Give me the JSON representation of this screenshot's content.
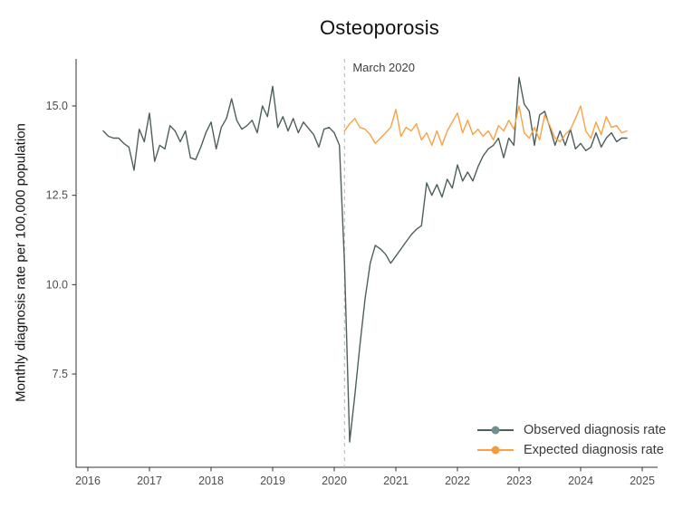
{
  "title": "Osteoporosis",
  "y_axis_label": "Monthly diagnosis rate per 100,000 population",
  "annotation": {
    "label": "March 2020"
  },
  "legend": {
    "observed": {
      "label": "Observed diagnosis rate"
    },
    "expected": {
      "label": "Expected diagnosis rate"
    }
  },
  "colors": {
    "observed_line": "#4d5f5d",
    "observed_dot": "#6c9190",
    "expected_line": "#f9a242",
    "expected_dot": "#f79a3e",
    "axis": "#333333",
    "tick_label": "#4d4d4d",
    "reference_line": "#bdbdbd",
    "annotation_text": "#3f3f3f"
  },
  "chart_data": {
    "type": "line",
    "title": "Osteoporosis",
    "xlabel": "",
    "ylabel": "Monthly diagnosis rate per 100,000 population",
    "x_ticks": [
      2016,
      2017,
      2018,
      2019,
      2020,
      2021,
      2022,
      2023,
      2024,
      2025
    ],
    "y_ticks": [
      7.5,
      10.0,
      12.5,
      15.0
    ],
    "y_tick_labels": [
      "7.5",
      "10.0",
      "12.5",
      "15.0"
    ],
    "xlim_years": [
      2015.81,
      2025.25
    ],
    "ylim": [
      4.89,
      16.32
    ],
    "grid": false,
    "legend_position": "bottom-right-inside",
    "annotation_line": {
      "label": "March 2020",
      "date": "2020-03",
      "style": "dashed"
    },
    "series": [
      {
        "name": "Observed diagnosis rate",
        "color": "#4d5f5d",
        "start": "2016-04",
        "frequency": "monthly",
        "values": [
          14.3,
          14.15,
          14.1,
          14.1,
          13.95,
          13.85,
          13.2,
          14.35,
          14.0,
          14.8,
          13.45,
          13.9,
          13.8,
          14.45,
          14.3,
          14.0,
          14.3,
          13.55,
          13.5,
          13.85,
          14.25,
          14.55,
          13.8,
          14.4,
          14.65,
          15.2,
          14.6,
          14.35,
          14.45,
          14.6,
          14.25,
          15.0,
          14.7,
          15.55,
          14.4,
          14.7,
          14.3,
          14.65,
          14.25,
          14.55,
          14.37,
          14.2,
          13.85,
          14.35,
          14.4,
          14.25,
          13.9,
          10.6,
          5.6,
          6.9,
          8.3,
          9.6,
          10.6,
          11.1,
          11.0,
          10.85,
          10.6,
          10.8,
          11.0,
          11.2,
          11.4,
          11.55,
          11.65,
          12.85,
          12.5,
          12.8,
          12.45,
          12.95,
          12.7,
          13.35,
          12.9,
          13.15,
          12.9,
          13.3,
          13.6,
          13.8,
          13.9,
          14.1,
          13.55,
          14.1,
          13.9,
          15.8,
          15.05,
          14.85,
          13.9,
          14.75,
          14.85,
          14.4,
          13.9,
          14.3,
          13.9,
          14.35,
          13.8,
          13.95,
          13.75,
          13.85,
          14.25,
          13.85,
          14.1,
          14.25,
          14.0,
          14.1,
          14.1
        ]
      },
      {
        "name": "Expected diagnosis rate",
        "color": "#f9a242",
        "start": "2020-03",
        "frequency": "monthly",
        "values": [
          14.3,
          14.5,
          14.65,
          14.4,
          14.35,
          14.2,
          13.95,
          14.1,
          14.25,
          14.4,
          14.9,
          14.15,
          14.4,
          14.3,
          14.5,
          14.05,
          14.25,
          13.9,
          14.3,
          13.9,
          14.3,
          14.55,
          14.8,
          14.25,
          14.6,
          14.2,
          14.35,
          14.15,
          14.3,
          14.05,
          14.45,
          14.3,
          14.6,
          14.35,
          15.0,
          14.25,
          14.1,
          14.4,
          14.05,
          14.75,
          14.45,
          14.1,
          14.0,
          14.2,
          14.35,
          14.65,
          15.0,
          14.3,
          14.1,
          14.55,
          14.2,
          14.7,
          14.4,
          14.45,
          14.25,
          14.3
        ]
      }
    ]
  }
}
